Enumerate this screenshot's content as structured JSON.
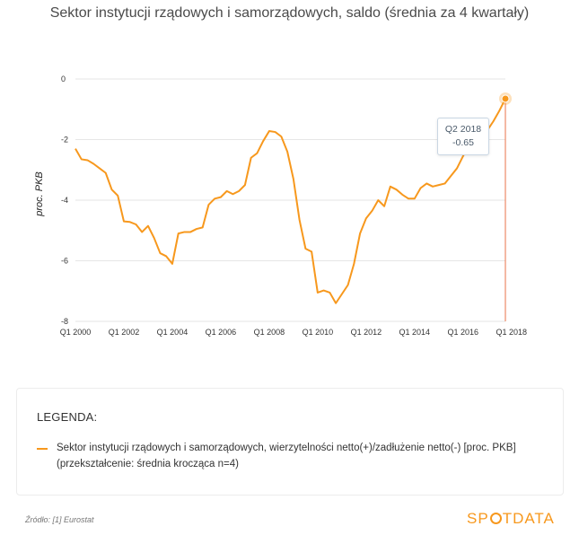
{
  "title": "Sektor instytucji rządowych i samorządowych, saldo (średnia za 4 kwartały)",
  "colors": {
    "series": "#f7981d",
    "grid": "#e6e6e6",
    "marker_line": "#e8734a"
  },
  "legend": {
    "heading": "LEGENDA:",
    "entry": "Sektor instytucji rządowych i samorządowych, wierzytelności netto(+)/zadłużenie netto(-) [proc. PKB] (przekształcenie: średnia krocząca n=4)"
  },
  "tooltip": {
    "period": "Q2 2018",
    "value": "-0.65"
  },
  "footer": {
    "source": "Źródło: [1] Eurostat",
    "logo_left": "SP",
    "logo_right": "TDATA"
  },
  "chart_data": {
    "type": "line",
    "ylabel": "proc. PKB",
    "xlabel": "",
    "ylim": [
      -8,
      0
    ],
    "yticks": [
      0,
      -2,
      -4,
      -6,
      -8
    ],
    "xtick_labels": [
      "Q1 2000",
      "Q1 2002",
      "Q1 2004",
      "Q1 2006",
      "Q1 2008",
      "Q1 2010",
      "Q1 2012",
      "Q1 2014",
      "Q1 2016",
      "Q1 2018"
    ],
    "grid": true,
    "series": [
      {
        "values": [
          -2.3,
          -2.65,
          -2.68,
          -2.8,
          -2.95,
          -3.1,
          -3.65,
          -3.85,
          -4.7,
          -4.72,
          -4.8,
          -5.05,
          -4.85,
          -5.25,
          -5.75,
          -5.85,
          -6.1,
          -5.1,
          -5.05,
          -5.05,
          -4.95,
          -4.9,
          -4.15,
          -3.95,
          -3.9,
          -3.7,
          -3.8,
          -3.7,
          -3.5,
          -2.6,
          -2.45,
          -2.05,
          -1.72,
          -1.75,
          -1.9,
          -2.4,
          -3.3,
          -4.65,
          -5.6,
          -5.7,
          -7.05,
          -6.98,
          -7.05,
          -7.4,
          -7.1,
          -6.8,
          -6.1,
          -5.1,
          -4.6,
          -4.35,
          -4.0,
          -4.2,
          -3.55,
          -3.65,
          -3.82,
          -3.95,
          -3.95,
          -3.6,
          -3.45,
          -3.55,
          -3.5,
          -3.45,
          -3.2,
          -2.95,
          -2.55,
          -2.2,
          -2.08,
          -1.95,
          -1.7,
          -1.4,
          -1.05,
          -0.65
        ]
      }
    ],
    "highlight": {
      "period": "Q2 2018",
      "value": -0.65
    }
  }
}
